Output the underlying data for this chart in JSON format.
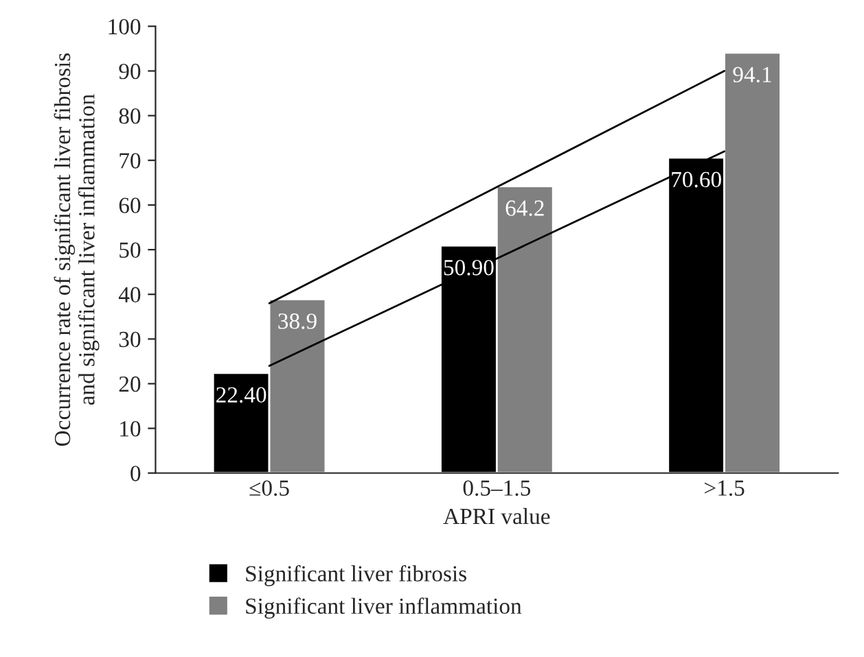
{
  "chart_data": {
    "type": "bar",
    "xlabel": "APRI value",
    "ylabel": "Occurrence rate of significant liver fibrosis\nand significant liver inflammation",
    "categories": [
      "≤0.5",
      "0.5–1.5",
      ">1.5"
    ],
    "series": [
      {
        "name": "Significant liver fibrosis",
        "color": "#000000",
        "values": [
          22.4,
          50.9,
          70.6
        ],
        "value_labels": [
          "22.40",
          "50.90",
          "70.60"
        ]
      },
      {
        "name": "Significant liver inflammation",
        "color": "#808080",
        "values": [
          38.9,
          64.2,
          94.1
        ],
        "value_labels": [
          "38.9",
          "64.2",
          "94.1"
        ]
      },
      {
        "type": "line",
        "color": "#000000",
        "values": [
          38,
          64,
          90
        ]
      },
      {
        "type": "line",
        "color": "#000000",
        "values": [
          24,
          48,
          72
        ]
      }
    ],
    "ylim": [
      0,
      100
    ],
    "yticks": [
      0,
      10,
      20,
      30,
      40,
      50,
      60,
      70,
      80,
      90,
      100
    ],
    "grid": false,
    "legend": "bottom",
    "marker": "none"
  }
}
